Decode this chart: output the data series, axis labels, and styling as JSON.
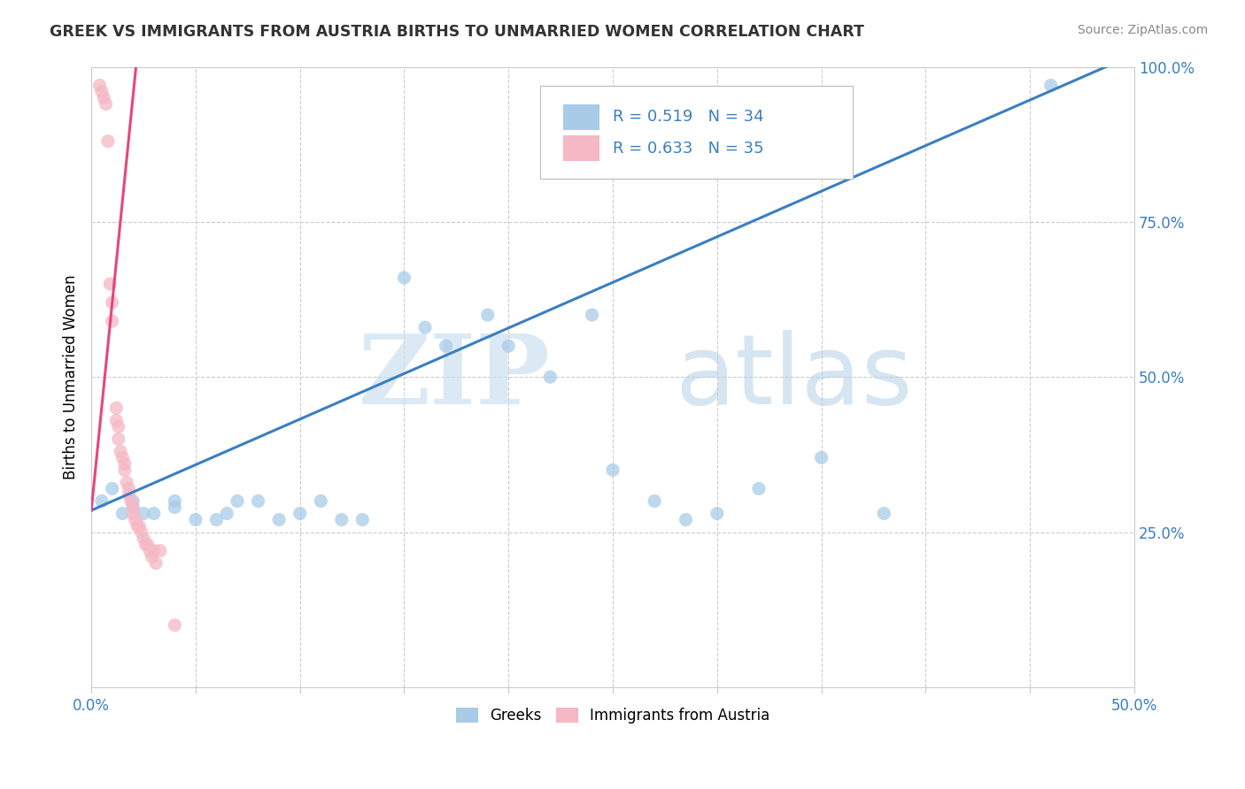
{
  "title": "GREEK VS IMMIGRANTS FROM AUSTRIA BIRTHS TO UNMARRIED WOMEN CORRELATION CHART",
  "source": "Source: ZipAtlas.com",
  "ylabel": "Births to Unmarried Women",
  "xlim": [
    0,
    0.5
  ],
  "ylim": [
    0,
    1.0
  ],
  "xticks": [
    0.0,
    0.05,
    0.1,
    0.15,
    0.2,
    0.25,
    0.3,
    0.35,
    0.4,
    0.45,
    0.5
  ],
  "xtick_labels_show": {
    "0.0": "0.0%",
    "0.5": "50.0%"
  },
  "ytick_labels": [
    "",
    "25.0%",
    "50.0%",
    "75.0%",
    "100.0%"
  ],
  "legend_r_blue": "R = 0.519",
  "legend_n_blue": "N = 34",
  "legend_r_pink": "R = 0.633",
  "legend_n_pink": "N = 35",
  "legend_label_blue": "Greeks",
  "legend_label_pink": "Immigrants from Austria",
  "blue_color": "#a8cce8",
  "pink_color": "#f5b8c4",
  "trend_blue_color": "#3a7fc1",
  "trend_pink_color": "#e8457a",
  "blue_scatter_x": [
    0.005,
    0.01,
    0.015,
    0.02,
    0.02,
    0.025,
    0.03,
    0.04,
    0.04,
    0.05,
    0.06,
    0.065,
    0.07,
    0.08,
    0.09,
    0.1,
    0.11,
    0.12,
    0.13,
    0.15,
    0.16,
    0.17,
    0.19,
    0.2,
    0.22,
    0.24,
    0.25,
    0.27,
    0.285,
    0.3,
    0.32,
    0.35,
    0.38,
    0.46
  ],
  "blue_scatter_y": [
    0.3,
    0.32,
    0.28,
    0.3,
    0.29,
    0.28,
    0.28,
    0.29,
    0.3,
    0.27,
    0.27,
    0.28,
    0.3,
    0.3,
    0.27,
    0.28,
    0.3,
    0.27,
    0.27,
    0.66,
    0.58,
    0.55,
    0.6,
    0.55,
    0.5,
    0.6,
    0.35,
    0.3,
    0.27,
    0.28,
    0.32,
    0.37,
    0.28,
    0.97
  ],
  "pink_scatter_x": [
    0.004,
    0.005,
    0.006,
    0.007,
    0.008,
    0.009,
    0.01,
    0.01,
    0.012,
    0.012,
    0.013,
    0.013,
    0.014,
    0.015,
    0.016,
    0.016,
    0.017,
    0.018,
    0.018,
    0.019,
    0.02,
    0.02,
    0.021,
    0.022,
    0.023,
    0.024,
    0.025,
    0.026,
    0.027,
    0.028,
    0.029,
    0.03,
    0.031,
    0.033,
    0.04
  ],
  "pink_scatter_y": [
    0.97,
    0.96,
    0.95,
    0.94,
    0.88,
    0.65,
    0.62,
    0.59,
    0.45,
    0.43,
    0.42,
    0.4,
    0.38,
    0.37,
    0.36,
    0.35,
    0.33,
    0.32,
    0.31,
    0.3,
    0.29,
    0.28,
    0.27,
    0.26,
    0.26,
    0.25,
    0.24,
    0.23,
    0.23,
    0.22,
    0.21,
    0.22,
    0.2,
    0.22,
    0.1
  ],
  "blue_trend_x": [
    0.0,
    0.5
  ],
  "blue_trend_y": [
    0.285,
    1.02
  ],
  "pink_trend_x": [
    0.0,
    0.022
  ],
  "pink_trend_y": [
    0.285,
    1.02
  ]
}
